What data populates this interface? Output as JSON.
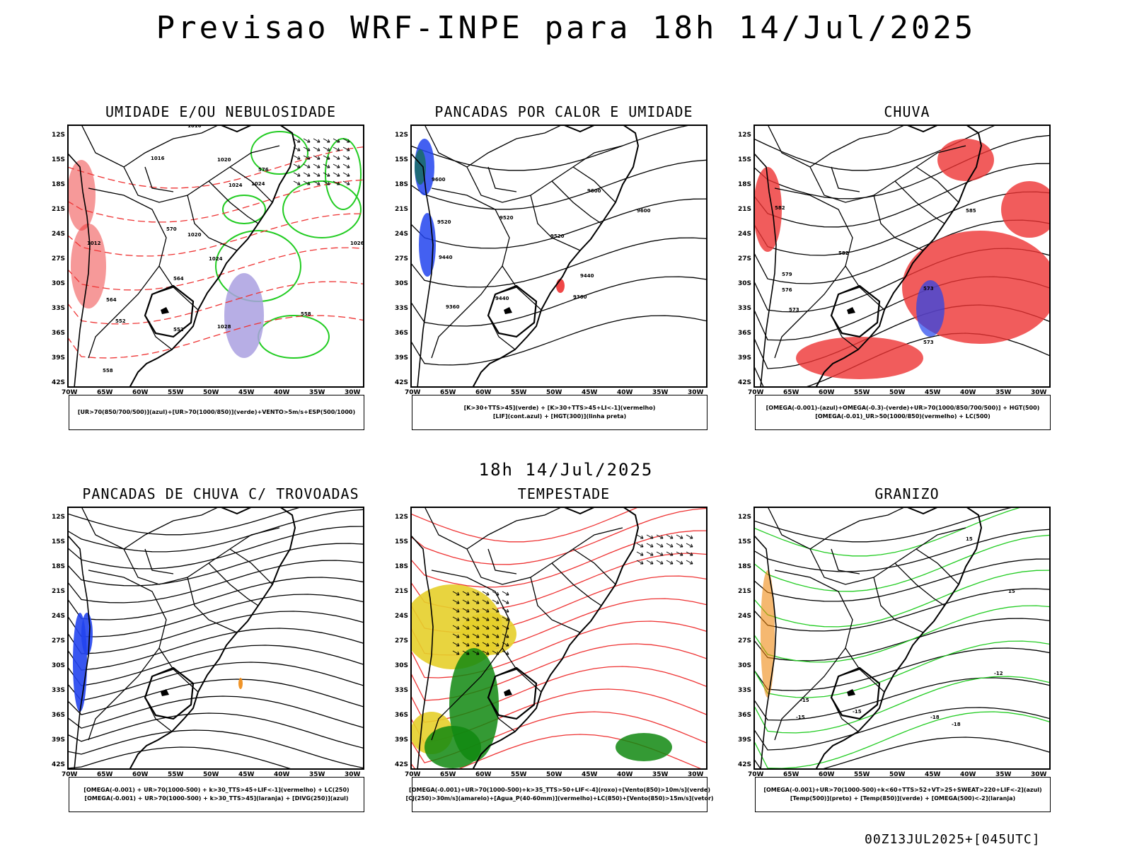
{
  "header": {
    "title": "Previsao WRF-INPE  para 18h 14/Jul/2025",
    "mid_time": "18h  14/Jul/2025",
    "footer_stamp": "00Z13JUL2025+[045UTC]"
  },
  "axes": {
    "lat_labels": [
      "12S",
      "15S",
      "18S",
      "21S",
      "24S",
      "27S",
      "30S",
      "33S",
      "36S",
      "39S",
      "42S"
    ],
    "lon_labels": [
      "70W",
      "65W",
      "60W",
      "55W",
      "50W",
      "45W",
      "40W",
      "35W",
      "30W"
    ]
  },
  "colors": {
    "green": "#22cc22",
    "red": "#ee3333",
    "blue": "#2244ee",
    "purple": "#aaa0e0",
    "yellow": "#e6cf2a",
    "dark_green": "#118811",
    "orange": "#ee8811"
  },
  "panels": [
    {
      "title": "UMIDADE E/OU NEBULOSIDADE",
      "legend": [
        "[UR>70(850/700/500)](azul)+[UR>70(1000/850)](verde)+VENTO>5m/s+ESP(500/1000)"
      ],
      "contour_labels": [
        "1016",
        "1016",
        "1020",
        "1024",
        "1024",
        "1020",
        "1024",
        "1028",
        "1026",
        "1012",
        "570",
        "576",
        "564",
        "558",
        "552",
        "552",
        "558",
        "564"
      ]
    },
    {
      "title": "PANCADAS POR CALOR E UMIDADE",
      "legend": [
        "[K>30+TTS>45](verde) + [K>30+TTS>45+LI<-1](vermelho)",
        "[LIF](cont.azul) + [HGT(300)](linha preta)"
      ],
      "contour_labels": [
        "9600",
        "9520",
        "9600",
        "9520",
        "9600",
        "9520",
        "9440",
        "9440",
        "9360",
        "9360",
        "9440"
      ]
    },
    {
      "title": "CHUVA",
      "legend": [
        "[OMEGA(-0.001)-(azul)+OMEGA(-0.3)-(verde)+UR>70(1000/850/700/500)] + HGT(500)",
        "[OMEGA(-0.01)_UR>50(1000/850)(vermelho) + LC(500)"
      ],
      "contour_labels": [
        "582",
        "579",
        "576",
        "573",
        "573",
        "582",
        "585",
        "573"
      ]
    },
    {
      "title": "PANCADAS DE CHUVA C/ TROVOADAS",
      "legend": [
        "[OMEGA(-0.001) + UR>70(1000-500) + k>30_TTS>45+LIF<-1](vermelho) + LC(250)",
        "[OMEGA(-0.001) + UR>70(1000-500) + k>30_TTS>45](laranja) + [DIVG(250)](azul)"
      ],
      "contour_labels": []
    },
    {
      "title": "TEMPESTADE",
      "legend": [
        "[OMEGA(-0.001)+UR>70(1000-500)+k>35_TTS>50+LIF<-4](roxo)+[Vento(850)>10m/s](verde)",
        "[CJ(250)>30m/s](amarelo)+[Agua_P(40-60mm)](vermelho)+LC(850)+[Vento(850)>15m/s](vetor)"
      ],
      "contour_labels": []
    },
    {
      "title": "GRANIZO",
      "legend": [
        "[OMEGA(-0.001)+UR>70(1000-500)+k<60+TTS>52+VT>25+SWEAT>220+LIF<-2](azul)",
        "[Temp(500)](preto) + [Temp(850)](verde) + [OMEGA(500)<-2](laranja)"
      ],
      "contour_labels": [
        "-15",
        "-12",
        "-18",
        "-18",
        "-15",
        "-15",
        "15",
        "15"
      ]
    }
  ]
}
